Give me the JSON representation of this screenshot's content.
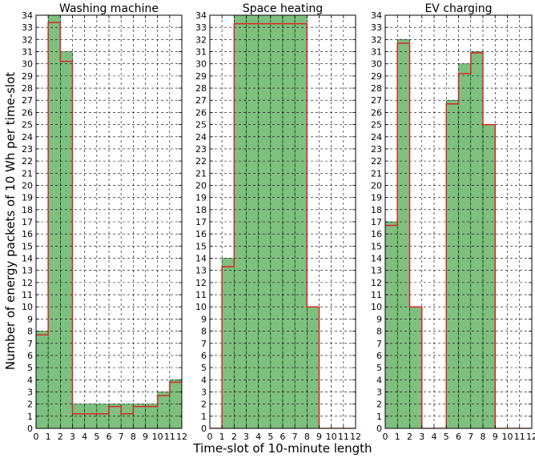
{
  "figure": {
    "ylabel": "Number of energy packets of 10 Wh per time-slot",
    "xlabel": "Time-slot of 10-minute length"
  },
  "colors": {
    "bar_fill": "#7fbf7f",
    "bar_edge": "#2e8b2e",
    "step_line": "#d62728",
    "grid": "#000000"
  },
  "chart_data": [
    {
      "type": "bar",
      "title": "Washing machine",
      "xlim": [
        0,
        12
      ],
      "ylim": [
        0,
        34
      ],
      "grid": true,
      "x_ticks": [
        0,
        1,
        2,
        3,
        4,
        5,
        6,
        7,
        8,
        9,
        10,
        11,
        12
      ],
      "y_ticks": [
        0,
        1,
        2,
        3,
        4,
        5,
        6,
        7,
        8,
        9,
        10,
        11,
        12,
        13,
        14,
        15,
        16,
        17,
        18,
        19,
        20,
        21,
        22,
        23,
        24,
        25,
        26,
        27,
        28,
        29,
        30,
        31,
        32,
        33,
        34
      ],
      "series": [
        {
          "kind": "bar",
          "values": [
            8,
            34,
            31,
            2,
            2,
            2,
            2,
            2,
            2,
            2,
            3,
            4
          ]
        },
        {
          "kind": "step",
          "values": [
            7.7,
            33.4,
            30.2,
            1.2,
            1.2,
            1.2,
            1.8,
            1.2,
            1.8,
            1.8,
            2.7,
            3.8
          ]
        }
      ]
    },
    {
      "type": "bar",
      "title": "Space heating",
      "xlim": [
        0,
        12
      ],
      "ylim": [
        0,
        34
      ],
      "grid": true,
      "x_ticks": [
        0,
        1,
        2,
        3,
        4,
        5,
        6,
        7,
        8,
        9,
        10,
        11,
        12
      ],
      "y_ticks": [
        0,
        1,
        2,
        3,
        4,
        5,
        6,
        7,
        8,
        9,
        10,
        11,
        12,
        13,
        14,
        15,
        16,
        17,
        18,
        19,
        20,
        21,
        22,
        23,
        24,
        25,
        26,
        27,
        28,
        29,
        30,
        31,
        32,
        33,
        34
      ],
      "series": [
        {
          "kind": "bar",
          "values": [
            0,
            14,
            34,
            34,
            34,
            34,
            34,
            34,
            10,
            0,
            0,
            0
          ]
        },
        {
          "kind": "step",
          "values": [
            0,
            13.3,
            33.3,
            33.3,
            33.3,
            33.3,
            33.3,
            33.3,
            10,
            0,
            0,
            0
          ]
        }
      ]
    },
    {
      "type": "bar",
      "title": "EV charging",
      "xlim": [
        0,
        12
      ],
      "ylim": [
        0,
        34
      ],
      "grid": true,
      "x_ticks": [
        0,
        1,
        2,
        3,
        4,
        5,
        6,
        7,
        8,
        9,
        10,
        11,
        12
      ],
      "y_ticks": [
        0,
        1,
        2,
        3,
        4,
        5,
        6,
        7,
        8,
        9,
        10,
        11,
        12,
        13,
        14,
        15,
        16,
        17,
        18,
        19,
        20,
        21,
        22,
        23,
        24,
        25,
        26,
        27,
        28,
        29,
        30,
        31,
        32,
        33,
        34
      ],
      "series": [
        {
          "kind": "bar",
          "values": [
            17,
            32,
            10,
            0,
            0,
            27,
            30,
            31,
            25,
            0,
            0,
            0
          ]
        },
        {
          "kind": "step",
          "values": [
            16.7,
            31.7,
            10,
            0,
            0,
            26.7,
            29.2,
            30.9,
            25,
            0,
            0,
            0
          ]
        }
      ]
    }
  ]
}
